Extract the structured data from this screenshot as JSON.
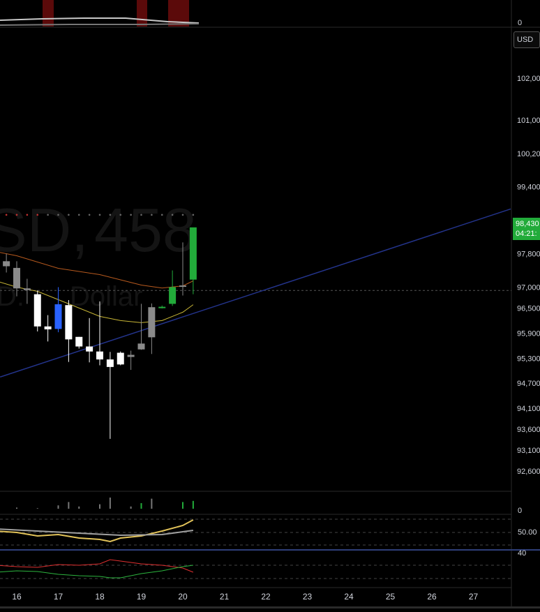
{
  "chart_data": [
    {
      "type": "candlestick",
      "name": "price",
      "watermark": {
        "left": "SD,",
        "right": "458",
        "sub_left": "D.",
        "sub_right": "Dollar"
      },
      "currency": "USD",
      "last_price": "98,430",
      "countdown": "04:21:",
      "y_ticks": [
        "102,00",
        "101,00",
        "100,20",
        "99,400",
        "98,600",
        "97,800",
        "97,000",
        "96,500",
        "95,900",
        "95,300",
        "94,700",
        "94,100",
        "93,600",
        "93,100",
        "92,600"
      ],
      "y_tick_values": [
        102000,
        101000,
        100200,
        99400,
        98600,
        97800,
        97000,
        96500,
        95900,
        95300,
        94700,
        94100,
        93600,
        93100,
        92600
      ],
      "x_ticks": [
        "16",
        "17",
        "18",
        "19",
        "20",
        "21",
        "22",
        "23",
        "24",
        "25",
        "26",
        "27"
      ],
      "candles": [
        {
          "day": 15.75,
          "o": 97500,
          "h": 97800,
          "l": 97350,
          "c": 97620,
          "color": "gray"
        },
        {
          "day": 16.0,
          "o": 97460,
          "h": 97620,
          "l": 96780,
          "c": 96970,
          "color": "gray"
        },
        {
          "day": 16.25,
          "o": 96970,
          "h": 97200,
          "l": 96600,
          "c": 96930,
          "color": "gray"
        },
        {
          "day": 16.5,
          "o": 96830,
          "h": 96920,
          "l": 95940,
          "c": 96060,
          "color": "white"
        },
        {
          "day": 16.75,
          "o": 96060,
          "h": 96330,
          "l": 95700,
          "c": 95990,
          "color": "white"
        },
        {
          "day": 17.0,
          "o": 96000,
          "h": 97000,
          "l": 95920,
          "c": 96590,
          "color": "blue"
        },
        {
          "day": 17.25,
          "o": 96570,
          "h": 96690,
          "l": 95210,
          "c": 95750,
          "color": "white"
        },
        {
          "day": 17.5,
          "o": 95810,
          "h": 95810,
          "l": 95530,
          "c": 95580,
          "color": "white"
        },
        {
          "day": 17.75,
          "o": 95580,
          "h": 96260,
          "l": 95200,
          "c": 95460,
          "color": "white"
        },
        {
          "day": 18.0,
          "o": 95460,
          "h": 96660,
          "l": 95130,
          "c": 95270,
          "color": "white"
        },
        {
          "day": 18.25,
          "o": 95270,
          "h": 95450,
          "l": 93370,
          "c": 95090,
          "color": "white"
        },
        {
          "day": 18.5,
          "o": 95430,
          "h": 95460,
          "l": 95130,
          "c": 95150,
          "color": "white"
        },
        {
          "day": 18.75,
          "o": 95380,
          "h": 95480,
          "l": 95020,
          "c": 95330,
          "color": "gray"
        },
        {
          "day": 19.0,
          "o": 95650,
          "h": 96600,
          "l": 95500,
          "c": 95510,
          "color": "gray"
        },
        {
          "day": 19.25,
          "o": 95800,
          "h": 96610,
          "l": 95400,
          "c": 96520,
          "color": "gray"
        },
        {
          "day": 19.5,
          "o": 96530,
          "h": 96560,
          "l": 96490,
          "c": 96510,
          "color": "green"
        },
        {
          "day": 19.75,
          "o": 96600,
          "h": 97400,
          "l": 96550,
          "c": 97000,
          "color": "green"
        },
        {
          "day": 20.0,
          "o": 97010,
          "h": 98070,
          "l": 96800,
          "c": 97040,
          "color": "gray"
        },
        {
          "day": 20.25,
          "o": 97180,
          "h": 98400,
          "l": 96830,
          "c": 98430,
          "color": "green"
        }
      ],
      "ma_orange": [
        [
          15.5,
          97850
        ],
        [
          16.0,
          97750
        ],
        [
          17.0,
          97450
        ],
        [
          18.0,
          97300
        ],
        [
          19.0,
          97050
        ],
        [
          19.5,
          96980
        ],
        [
          20.0,
          97030
        ],
        [
          20.25,
          97150
        ]
      ],
      "ma_yellow": [
        [
          15.5,
          97150
        ],
        [
          16.0,
          97000
        ],
        [
          16.5,
          96900
        ],
        [
          17.0,
          96700
        ],
        [
          18.0,
          96300
        ],
        [
          18.5,
          96200
        ],
        [
          19.0,
          96150
        ],
        [
          19.5,
          96200
        ],
        [
          20.0,
          96400
        ],
        [
          20.25,
          96580
        ]
      ],
      "trend_line": [
        [
          15.6,
          94850
        ],
        [
          27.9,
          98870
        ]
      ],
      "dotted_level": 96920,
      "top_dots_level": 98730
    },
    {
      "type": "volume",
      "name": "volume",
      "y_ticks": [
        "0"
      ],
      "bars": [
        [
          16.0,
          0.1
        ],
        [
          16.5,
          0.05
        ],
        [
          17.0,
          0.3
        ],
        [
          17.25,
          0.6
        ],
        [
          17.5,
          0.2
        ],
        [
          18.0,
          0.4
        ],
        [
          18.25,
          1.0
        ],
        [
          18.75,
          0.2
        ],
        [
          19.0,
          0.5
        ],
        [
          19.25,
          0.9
        ],
        [
          20.0,
          0.6
        ],
        [
          20.25,
          0.7
        ]
      ]
    },
    {
      "type": "line",
      "name": "oscillator-1",
      "y_ticks": [
        "50.00"
      ],
      "series": [
        {
          "color": "#e2c35a",
          "values": [
            [
              15.5,
              52
            ],
            [
              16.0,
              50
            ],
            [
              16.5,
              45
            ],
            [
              17.0,
              47
            ],
            [
              17.5,
              42
            ],
            [
              18.0,
              40
            ],
            [
              18.25,
              37
            ],
            [
              18.5,
              42
            ],
            [
              19.0,
              45
            ],
            [
              19.5,
              52
            ],
            [
              20.0,
              60
            ],
            [
              20.25,
              68
            ]
          ]
        },
        {
          "color": "#a0a0a0",
          "values": [
            [
              15.5,
              55
            ],
            [
              16.5,
              52
            ],
            [
              17.5,
              49
            ],
            [
              18.5,
              46
            ],
            [
              19.5,
              47
            ],
            [
              20.0,
              51
            ],
            [
              20.25,
              53
            ]
          ]
        }
      ]
    },
    {
      "type": "line",
      "name": "oscillator-2",
      "y_ticks": [
        "40"
      ],
      "series": [
        {
          "color": "#e03030",
          "values": [
            [
              15.5,
              40
            ],
            [
              16.0,
              38
            ],
            [
              16.5,
              37
            ],
            [
              17.0,
              41
            ],
            [
              17.5,
              40
            ],
            [
              18.0,
              42
            ],
            [
              18.25,
              48
            ],
            [
              18.5,
              46
            ],
            [
              19.0,
              42
            ],
            [
              19.5,
              40
            ],
            [
              20.0,
              36
            ],
            [
              20.25,
              30
            ]
          ]
        },
        {
          "color": "#2db53f",
          "values": [
            [
              15.5,
              30
            ],
            [
              16.0,
              32
            ],
            [
              16.5,
              31
            ],
            [
              17.0,
              27
            ],
            [
              17.5,
              25
            ],
            [
              18.0,
              24
            ],
            [
              18.25,
              22
            ],
            [
              18.5,
              22
            ],
            [
              19.0,
              28
            ],
            [
              19.5,
              32
            ],
            [
              20.0,
              38
            ],
            [
              20.25,
              40
            ]
          ]
        }
      ]
    },
    {
      "type": "histogram",
      "name": "top-pane",
      "y_ticks": [
        "0"
      ]
    }
  ],
  "colors": {
    "up": "#22ab3a",
    "down": "#ffffff",
    "neutral": "#8a8a8a",
    "blue": "#2962ff",
    "trend": "#23338a"
  }
}
